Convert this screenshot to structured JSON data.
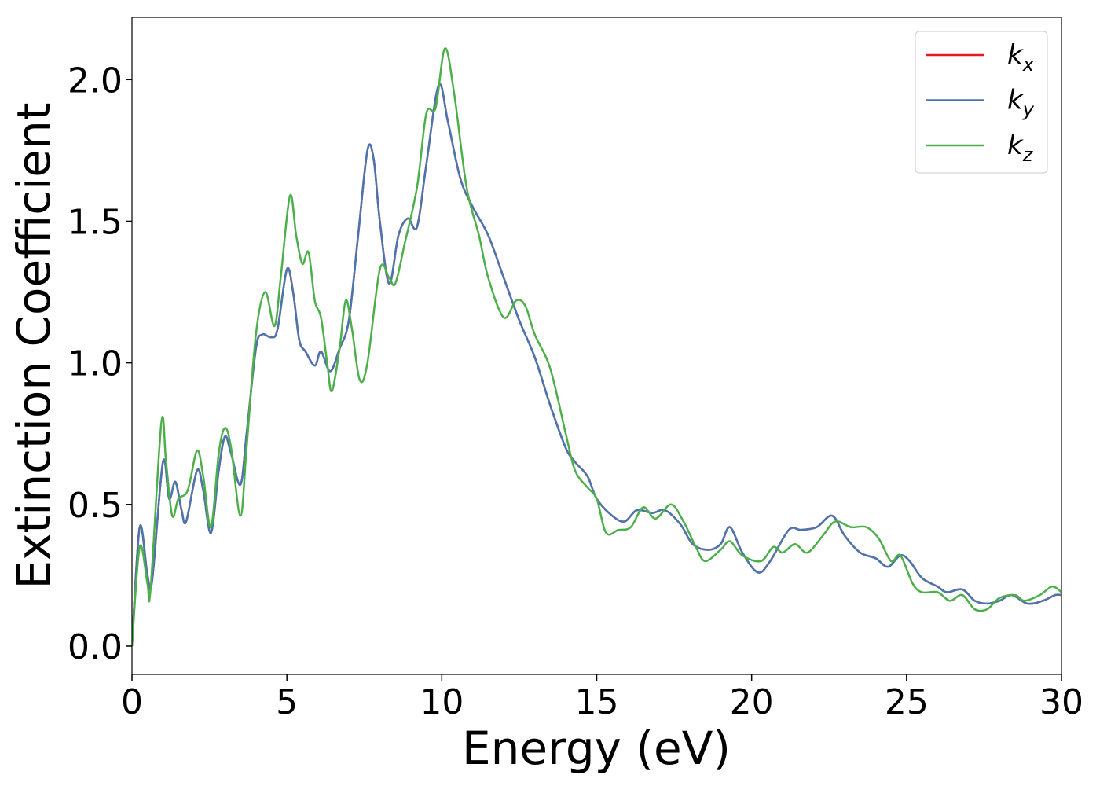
{
  "chart_data": {
    "type": "line",
    "xlabel": "Energy (eV)",
    "ylabel": "Extinction Coefficient",
    "xlim": [
      0,
      30
    ],
    "ylim": [
      -0.1,
      2.22
    ],
    "xticks": [
      0,
      5,
      10,
      15,
      20,
      25,
      30
    ],
    "yticks": [
      {
        "value": 0,
        "label": "0.0"
      },
      {
        "value": 0.5,
        "label": "0.5"
      },
      {
        "value": 1,
        "label": "1.0"
      },
      {
        "value": 1.5,
        "label": "1.5"
      },
      {
        "value": 2,
        "label": "2.0"
      }
    ],
    "legend": "upper right",
    "grid": false,
    "series": [
      {
        "name": "kx",
        "color": "#e41a1c",
        "x": [
          0,
          0.25,
          0.5,
          0.65,
          1.0,
          1.2,
          1.4,
          1.6,
          1.75,
          2.1,
          2.3,
          2.55,
          2.8,
          3.0,
          3.2,
          3.5,
          3.7,
          4.0,
          4.2,
          4.5,
          4.7,
          5.0,
          5.2,
          5.4,
          5.6,
          5.9,
          6.1,
          6.4,
          6.7,
          7.0,
          7.3,
          7.6,
          7.8,
          8.0,
          8.3,
          8.6,
          8.9,
          9.2,
          9.5,
          9.9,
          10.2,
          10.6,
          11.0,
          11.5,
          12.0,
          12.5,
          13.0,
          13.5,
          14.0,
          14.3,
          14.7,
          15.0,
          15.5,
          15.9,
          16.3,
          16.8,
          17.2,
          17.7,
          18.1,
          18.6,
          19.0,
          19.3,
          19.7,
          20.2,
          20.6,
          21.2,
          21.6,
          22.1,
          22.6,
          23.0,
          23.5,
          24.0,
          24.4,
          24.8,
          25.1,
          25.5,
          26.0,
          26.3,
          26.8,
          27.2,
          27.6,
          28.0,
          28.4,
          28.9,
          29.4,
          29.8,
          30
        ],
        "values": [
          0,
          0.42,
          0.25,
          0.23,
          0.65,
          0.52,
          0.58,
          0.48,
          0.44,
          0.62,
          0.55,
          0.4,
          0.62,
          0.74,
          0.68,
          0.57,
          0.75,
          1.05,
          1.1,
          1.09,
          1.12,
          1.33,
          1.25,
          1.08,
          1.04,
          0.99,
          1.04,
          0.97,
          1.05,
          1.15,
          1.45,
          1.75,
          1.72,
          1.5,
          1.28,
          1.45,
          1.51,
          1.48,
          1.7,
          1.98,
          1.85,
          1.65,
          1.55,
          1.45,
          1.3,
          1.15,
          1.02,
          0.85,
          0.7,
          0.65,
          0.6,
          0.52,
          0.46,
          0.44,
          0.48,
          0.47,
          0.48,
          0.43,
          0.36,
          0.34,
          0.36,
          0.42,
          0.33,
          0.26,
          0.3,
          0.41,
          0.41,
          0.42,
          0.46,
          0.39,
          0.33,
          0.31,
          0.28,
          0.32,
          0.3,
          0.24,
          0.21,
          0.19,
          0.2,
          0.16,
          0.15,
          0.16,
          0.18,
          0.15,
          0.16,
          0.18,
          0.18
        ]
      },
      {
        "name": "ky",
        "color": "#4a76b0",
        "x": [
          0,
          0.25,
          0.5,
          0.65,
          1.0,
          1.2,
          1.4,
          1.6,
          1.75,
          2.1,
          2.3,
          2.55,
          2.8,
          3.0,
          3.2,
          3.5,
          3.7,
          4.0,
          4.2,
          4.5,
          4.7,
          5.0,
          5.2,
          5.4,
          5.6,
          5.9,
          6.1,
          6.4,
          6.7,
          7.0,
          7.3,
          7.6,
          7.8,
          8.0,
          8.3,
          8.6,
          8.9,
          9.2,
          9.5,
          9.9,
          10.2,
          10.6,
          11.0,
          11.5,
          12.0,
          12.5,
          13.0,
          13.5,
          14.0,
          14.3,
          14.7,
          15.0,
          15.5,
          15.9,
          16.3,
          16.8,
          17.2,
          17.7,
          18.1,
          18.6,
          19.0,
          19.3,
          19.7,
          20.2,
          20.6,
          21.2,
          21.6,
          22.1,
          22.6,
          23.0,
          23.5,
          24.0,
          24.4,
          24.8,
          25.1,
          25.5,
          26.0,
          26.3,
          26.8,
          27.2,
          27.6,
          28.0,
          28.4,
          28.9,
          29.4,
          29.8,
          30
        ],
        "values": [
          0,
          0.42,
          0.25,
          0.23,
          0.65,
          0.52,
          0.58,
          0.48,
          0.44,
          0.62,
          0.55,
          0.4,
          0.62,
          0.74,
          0.68,
          0.57,
          0.75,
          1.05,
          1.1,
          1.09,
          1.12,
          1.33,
          1.25,
          1.08,
          1.04,
          0.99,
          1.04,
          0.97,
          1.05,
          1.15,
          1.45,
          1.75,
          1.72,
          1.5,
          1.28,
          1.45,
          1.51,
          1.48,
          1.7,
          1.98,
          1.85,
          1.65,
          1.55,
          1.45,
          1.3,
          1.15,
          1.02,
          0.85,
          0.7,
          0.65,
          0.6,
          0.52,
          0.46,
          0.44,
          0.48,
          0.47,
          0.48,
          0.43,
          0.36,
          0.34,
          0.36,
          0.42,
          0.33,
          0.26,
          0.3,
          0.41,
          0.41,
          0.42,
          0.46,
          0.39,
          0.33,
          0.31,
          0.28,
          0.32,
          0.3,
          0.24,
          0.21,
          0.19,
          0.2,
          0.16,
          0.15,
          0.16,
          0.18,
          0.15,
          0.16,
          0.18,
          0.18
        ]
      },
      {
        "name": "kz",
        "color": "#4daf4a",
        "x": [
          0,
          0.25,
          0.5,
          0.6,
          0.95,
          1.1,
          1.3,
          1.5,
          1.8,
          2.1,
          2.3,
          2.55,
          2.8,
          3.0,
          3.2,
          3.5,
          3.7,
          4.0,
          4.3,
          4.6,
          4.8,
          5.1,
          5.3,
          5.5,
          5.7,
          5.9,
          6.1,
          6.3,
          6.45,
          6.7,
          6.9,
          7.1,
          7.35,
          7.6,
          8.0,
          8.3,
          8.5,
          8.8,
          9.2,
          9.5,
          9.8,
          10.1,
          10.4,
          10.8,
          11.2,
          11.5,
          12.0,
          12.4,
          12.7,
          13.0,
          13.5,
          14.0,
          14.3,
          14.7,
          15.0,
          15.3,
          15.7,
          16.1,
          16.5,
          16.9,
          17.4,
          17.8,
          18.2,
          18.5,
          19.0,
          19.3,
          19.7,
          20.3,
          20.7,
          21.0,
          21.4,
          21.8,
          22.3,
          22.7,
          23.2,
          23.7,
          24.1,
          24.5,
          24.8,
          25.2,
          25.5,
          26.0,
          26.4,
          26.8,
          27.2,
          27.6,
          28.0,
          28.5,
          28.8,
          29.3,
          29.7,
          30
        ],
        "values": [
          0,
          0.35,
          0.22,
          0.2,
          0.79,
          0.65,
          0.46,
          0.52,
          0.55,
          0.69,
          0.6,
          0.42,
          0.68,
          0.77,
          0.7,
          0.46,
          0.7,
          1.1,
          1.25,
          1.13,
          1.3,
          1.59,
          1.45,
          1.35,
          1.39,
          1.22,
          1.16,
          1.0,
          0.9,
          1.05,
          1.22,
          1.12,
          0.94,
          1.0,
          1.33,
          1.3,
          1.28,
          1.42,
          1.62,
          1.88,
          1.9,
          2.11,
          1.95,
          1.62,
          1.45,
          1.3,
          1.16,
          1.22,
          1.2,
          1.1,
          0.98,
          0.75,
          0.62,
          0.56,
          0.52,
          0.4,
          0.41,
          0.42,
          0.49,
          0.45,
          0.5,
          0.44,
          0.35,
          0.3,
          0.34,
          0.37,
          0.32,
          0.3,
          0.35,
          0.33,
          0.36,
          0.33,
          0.39,
          0.44,
          0.42,
          0.42,
          0.38,
          0.3,
          0.32,
          0.22,
          0.19,
          0.19,
          0.16,
          0.18,
          0.13,
          0.13,
          0.17,
          0.18,
          0.16,
          0.18,
          0.21,
          0.19
        ]
      }
    ]
  }
}
